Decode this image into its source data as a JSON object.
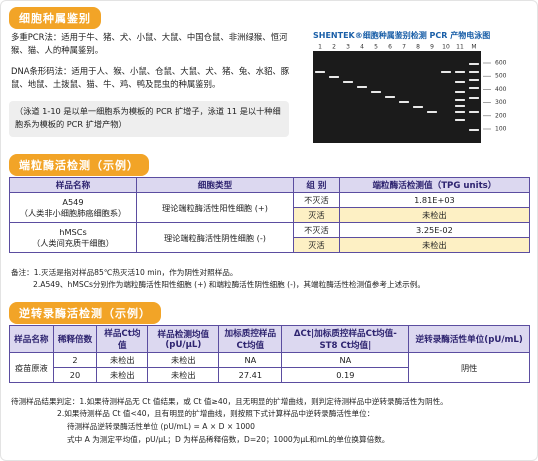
{
  "species": {
    "title": "细胞种属鉴别",
    "pcr": "多重PCR法：适用于牛、猪、犬、小鼠、大鼠、中国仓鼠、非洲绿猴、恒河猴、猫、人的种属鉴别。",
    "barcode": "DNA条形码法：适用于人、猴、小鼠、仓鼠、大鼠、犬、猪、兔、水貂、豚鼠、地鼠、土拨鼠、猫、牛、鸡、鸭及昆虫的种属鉴别。",
    "note": "（泳道 1-10 是以单一细胞系为模板的 PCR 扩增子，泳道 11 是以十种细胞系为模板的 PCR 扩增产物）",
    "gel": {
      "title": "SHENTEK®细胞种属鉴别检测 PCR 产物电泳图",
      "lanes": [
        "1",
        "2",
        "3",
        "4",
        "5",
        "6",
        "7",
        "8",
        "9",
        "10",
        "11",
        "M"
      ],
      "markers": [
        "600",
        "500",
        "400",
        "300",
        "200",
        "100"
      ]
    }
  },
  "telomerase": {
    "title": "端粒酶活检测（示例）",
    "table": {
      "header": [
        "样品名称",
        "细胞类型",
        "组 别",
        "端粒酶活检测值（TPG units）"
      ],
      "rows": [
        {
          "sample": "A549",
          "desc": "（人类非小细胞肺癌细胞系）",
          "type": "理论端粒酶活性阳性细胞 (+)",
          "groups": [
            {
              "group": "不灭活",
              "value": "1.81E+03"
            },
            {
              "group": "灭活",
              "value": "未检出"
            }
          ]
        },
        {
          "sample": "hMSCs",
          "desc": "（人类间充质干细胞）",
          "type": "理论端粒酶活性阴性细胞 (-)",
          "groups": [
            {
              "group": "不灭活",
              "value": "3.25E-02"
            },
            {
              "group": "灭活",
              "value": "未检出"
            }
          ]
        }
      ]
    },
    "notes": [
      "备注：1.灭活是指对样品85℃热灭活10 min，作为阴性对照样品。",
      "2.A549、hMSCs分别作为端粒酶活性阳性细胞 (+) 和端粒酶活性阴性细胞 (-)，其端粒酶活性检测值参考上述示例。"
    ]
  },
  "rt": {
    "title": "逆转录酶活检测（示例）",
    "table": {
      "header": [
        "样品名称",
        "稀释倍数",
        "样品Ct均值",
        "样品检测均值(pU/μL)",
        "加标质控样品Ct均值",
        "ΔCt|加标质控样品Ct均值-ST8 Ct均值|",
        "逆转录酶活性单位(pU/mL)"
      ],
      "sample": "疫苗原液",
      "rows": [
        [
          "2",
          "未检出",
          "未检出",
          "NA",
          "NA"
        ],
        [
          "20",
          "未检出",
          "未检出",
          "27.41",
          "0.19"
        ]
      ],
      "result": "阴性"
    },
    "notes": [
      "待测样品结果判定：1.如果待测样品无 Ct 值结果，或 Ct 值≥40，且无明显的扩增曲线，则判定待测样品中逆转录酶活性为阴性。",
      "2.如果待测样品 Ct 值<40，且有明显的扩增曲线，则按照下式计算样品中逆转录酶活性单位：",
      "待测样品逆转录酶活性单位 (pU/mL) = A × D × 1000",
      "式中 A 为测定平均值，pU/μL；D 为样品稀释倍数，D=20；1000为μL和mL的单位换算倍数。"
    ]
  }
}
